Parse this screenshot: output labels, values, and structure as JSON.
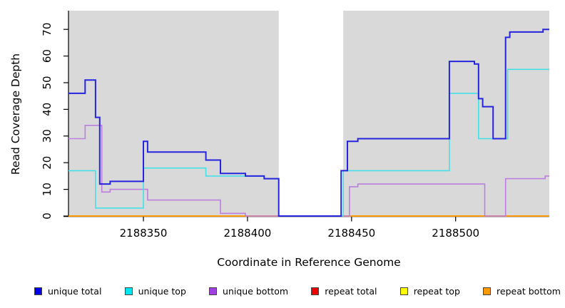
{
  "chart_data": {
    "type": "line",
    "subtype": "step",
    "title": "",
    "xlabel": "Coordinate in Reference Genome",
    "ylabel": "Read Coverage Depth",
    "x_min": 2188314,
    "x_max": 2188545,
    "y_min": 0,
    "y_max": 77,
    "x_tick_values": [
      2188350,
      2188400,
      2188450,
      2188500
    ],
    "y_tick_values": [
      0,
      10,
      20,
      30,
      40,
      50,
      60,
      70
    ],
    "grid": false,
    "legend_position": "bottom",
    "plot_background": "#d9d9d9",
    "shaded_regions": [
      [
        2188314,
        2188415
      ],
      [
        2188446,
        2188545
      ]
    ],
    "series": [
      {
        "name": "repeat total",
        "color": "#dd0000",
        "width": 1.5,
        "steps": [
          [
            2188314,
            0
          ],
          [
            2188545,
            0
          ]
        ]
      },
      {
        "name": "repeat top",
        "color": "#f0f000",
        "width": 1.5,
        "steps": [
          [
            2188314,
            0
          ],
          [
            2188545,
            0
          ]
        ]
      },
      {
        "name": "repeat bottom",
        "color": "#ff9900",
        "width": 2,
        "steps": [
          [
            2188314,
            0
          ],
          [
            2188545,
            0
          ]
        ]
      },
      {
        "name": "unique bottom",
        "color": "#bb7fdd",
        "width": 1.6,
        "steps": [
          [
            2188314,
            29
          ],
          [
            2188322,
            34
          ],
          [
            2188330,
            9
          ],
          [
            2188334,
            10
          ],
          [
            2188352,
            6
          ],
          [
            2188387,
            1
          ],
          [
            2188399,
            0
          ],
          [
            2188449,
            11
          ],
          [
            2188453,
            12
          ],
          [
            2188514,
            0
          ],
          [
            2188524,
            14
          ],
          [
            2188543,
            15
          ],
          [
            2188545,
            15
          ]
        ]
      },
      {
        "name": "unique top",
        "color": "#45dfe8",
        "width": 1.6,
        "steps": [
          [
            2188314,
            17
          ],
          [
            2188327,
            3
          ],
          [
            2188350,
            18
          ],
          [
            2188380,
            15
          ],
          [
            2188408,
            14
          ],
          [
            2188415,
            0
          ],
          [
            2188446,
            17
          ],
          [
            2188497,
            46
          ],
          [
            2188511,
            29
          ],
          [
            2188525,
            55
          ],
          [
            2188545,
            55
          ]
        ]
      },
      {
        "name": "unique total",
        "color": "#2525dd",
        "width": 2,
        "steps": [
          [
            2188314,
            46
          ],
          [
            2188322,
            51
          ],
          [
            2188327,
            37
          ],
          [
            2188329,
            12
          ],
          [
            2188334,
            13
          ],
          [
            2188350,
            28
          ],
          [
            2188352,
            24
          ],
          [
            2188380,
            21
          ],
          [
            2188387,
            16
          ],
          [
            2188399,
            15
          ],
          [
            2188408,
            14
          ],
          [
            2188415,
            0
          ],
          [
            2188445,
            17
          ],
          [
            2188448,
            28
          ],
          [
            2188453,
            29
          ],
          [
            2188497,
            58
          ],
          [
            2188509,
            57
          ],
          [
            2188511,
            44
          ],
          [
            2188513,
            41
          ],
          [
            2188518,
            29
          ],
          [
            2188524,
            67
          ],
          [
            2188526,
            69
          ],
          [
            2188542,
            70
          ],
          [
            2188545,
            70
          ]
        ]
      }
    ]
  },
  "legend": {
    "items": [
      {
        "label": "unique total",
        "color": "#0000ee"
      },
      {
        "label": "unique top",
        "color": "#00e5ee"
      },
      {
        "label": "unique bottom",
        "color": "#a040e0"
      },
      {
        "label": "repeat total",
        "color": "#ee0000"
      },
      {
        "label": "repeat top",
        "color": "#ffff00"
      },
      {
        "label": "repeat bottom",
        "color": "#ff9900"
      }
    ]
  }
}
